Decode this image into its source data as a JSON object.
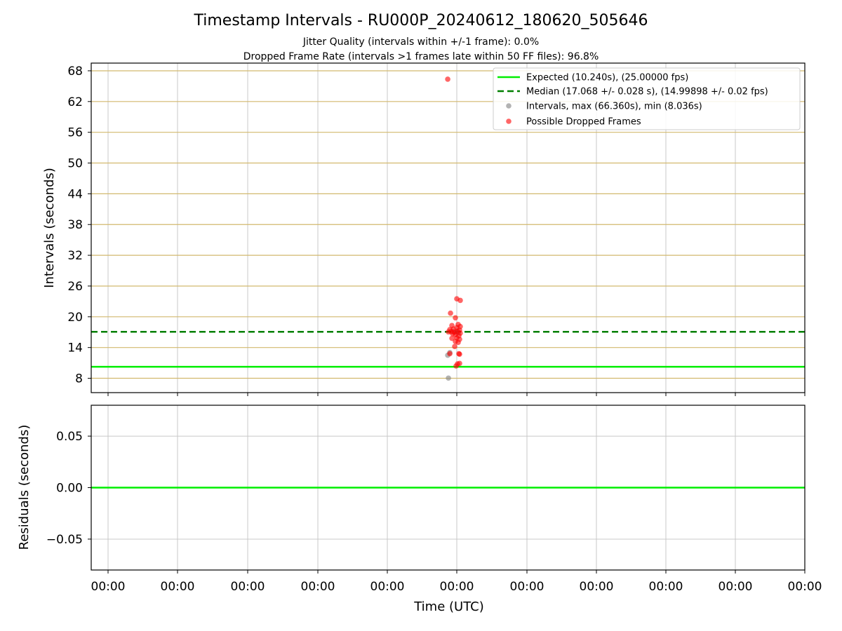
{
  "chart_data": [
    {
      "type": "scatter",
      "title": "Timestamp Intervals - RU000P_20240612_180620_505646",
      "subtitle_lines": [
        "Jitter Quality (intervals within +/-1 frame): 0.0%",
        "Dropped Frame Rate (intervals >1 frames late within 50 FF files): 96.8%"
      ],
      "xlabel": "",
      "ylabel": "Intervals (seconds)",
      "x_tick_labels": [
        "00:00",
        "00:00",
        "00:00",
        "00:00",
        "00:00",
        "00:00",
        "00:00",
        "00:00",
        "00:00",
        "00:00",
        "00:00"
      ],
      "ylim": [
        5.2,
        69.5
      ],
      "yticks": [
        8,
        14,
        20,
        26,
        32,
        38,
        44,
        50,
        56,
        62,
        68
      ],
      "grid": true,
      "legend_placement": "top-right",
      "colors": {
        "expected": "#00ee00",
        "median": "#007f00",
        "intervals": "#808080",
        "dropped": "#ff0000",
        "hgrid": "#d2b96e",
        "vgrid": "#c8c8c8"
      },
      "x_range": [
        -5,
        5.25
      ],
      "reference_lines": {
        "expected": 10.24,
        "median": 17.068
      },
      "series": [
        {
          "name": "Expected (10.240s), (25.00000 fps)",
          "kind": "hline",
          "value": 10.24
        },
        {
          "name": "Median (17.068 +/- 0.028 s), (14.99898 +/- 0.02 fps)",
          "kind": "hline_dashed",
          "value": 17.068
        },
        {
          "name": "Intervals, max (66.360s), min (8.036s)",
          "kind": "scatter",
          "points": [
            [
              -0.12,
              8.04
            ],
            [
              -0.13,
              12.5
            ],
            [
              -0.1,
              13.0
            ],
            [
              -0.05,
              17.1
            ],
            [
              0.0,
              17.0
            ],
            [
              0.02,
              16.9
            ]
          ]
        },
        {
          "name": "Possible Dropped Frames",
          "kind": "scatter",
          "points": [
            [
              -0.13,
              66.36
            ],
            [
              0.0,
              23.5
            ],
            [
              0.05,
              23.2
            ],
            [
              -0.09,
              20.7
            ],
            [
              -0.02,
              19.8
            ],
            [
              -0.07,
              18.3
            ],
            [
              0.02,
              18.5
            ],
            [
              0.05,
              18.1
            ],
            [
              -0.1,
              17.5
            ],
            [
              -0.05,
              17.6
            ],
            [
              0.0,
              17.9
            ],
            [
              0.04,
              17.4
            ],
            [
              -0.12,
              17.05
            ],
            [
              -0.08,
              17.1
            ],
            [
              -0.03,
              17.0
            ],
            [
              0.01,
              17.2
            ],
            [
              0.05,
              16.8
            ],
            [
              -0.06,
              16.7
            ],
            [
              -0.02,
              16.5
            ],
            [
              0.03,
              16.3
            ],
            [
              -0.07,
              15.8
            ],
            [
              0.0,
              15.9
            ],
            [
              0.04,
              15.6
            ],
            [
              -0.02,
              15.2
            ],
            [
              0.02,
              15.0
            ],
            [
              -0.03,
              14.2
            ],
            [
              -0.1,
              12.8
            ],
            [
              0.03,
              12.8
            ],
            [
              0.04,
              12.7
            ],
            [
              0.01,
              10.8
            ],
            [
              0.04,
              10.9
            ],
            [
              -0.01,
              10.4
            ]
          ]
        }
      ]
    },
    {
      "type": "line",
      "xlabel": "Time (UTC)",
      "ylabel": "Residuals (seconds)",
      "x_tick_labels": [
        "00:00",
        "00:00",
        "00:00",
        "00:00",
        "00:00",
        "00:00",
        "00:00",
        "00:00",
        "00:00",
        "00:00",
        "00:00"
      ],
      "ylim": [
        -0.08,
        0.08
      ],
      "yticks": [
        -0.05,
        0.0,
        0.05
      ],
      "ytick_labels": [
        "−0.05",
        "0.00",
        "0.05"
      ],
      "grid": true,
      "series": [
        {
          "kind": "hline",
          "value": 0.0,
          "color": "#00ee00"
        }
      ]
    }
  ]
}
